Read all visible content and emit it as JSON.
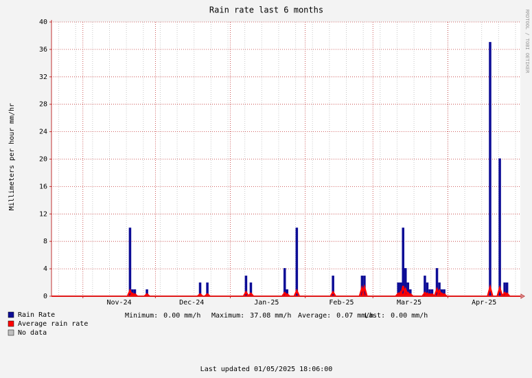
{
  "chart_data": {
    "type": "bar",
    "title": "Rain rate last 6 months",
    "y_label": "Millimeters per hour",
    "y_unit": "mm/hr",
    "side_text": "RRDTOOL / TOBI OETIKER",
    "xlim": [
      "2024-10-19",
      "2025-05-01"
    ],
    "xticks": [
      {
        "value": "2024-11-01",
        "label": "Nov-24"
      },
      {
        "value": "2024-12-01",
        "label": "Dec-24"
      },
      {
        "value": "2025-01-01",
        "label": "Jan-25"
      },
      {
        "value": "2025-02-01",
        "label": "Feb-25"
      },
      {
        "value": "2025-03-01",
        "label": "Mar-25"
      },
      {
        "value": "2025-04-01",
        "label": "Apr-25"
      }
    ],
    "ylim": [
      0,
      40
    ],
    "yticks": [
      0,
      4,
      8,
      12,
      16,
      20,
      24,
      28,
      32,
      36,
      40
    ],
    "grid": true,
    "x": [
      "2024-11-20",
      "2024-11-21",
      "2024-11-22",
      "2024-11-27",
      "2024-12-19",
      "2024-12-22",
      "2025-01-07",
      "2025-01-09",
      "2025-01-23",
      "2025-01-24",
      "2025-01-28",
      "2025-02-12",
      "2025-02-24",
      "2025-02-25",
      "2025-03-11",
      "2025-03-12",
      "2025-03-13",
      "2025-03-14",
      "2025-03-15",
      "2025-03-16",
      "2025-03-22",
      "2025-03-23",
      "2025-03-24",
      "2025-03-25",
      "2025-03-27",
      "2025-03-28",
      "2025-03-29",
      "2025-03-30",
      "2025-04-18",
      "2025-04-22",
      "2025-04-24",
      "2025-04-25"
    ],
    "series": [
      {
        "name": "Rain Rate",
        "color": "#0c0c96",
        "values": [
          10,
          1,
          1,
          1,
          2,
          2,
          3,
          2,
          4.1,
          1,
          10,
          3,
          3,
          3,
          2,
          2,
          10,
          4.1,
          2,
          1,
          3,
          2,
          1,
          1,
          4.1,
          2,
          1,
          1,
          37.08,
          20.1,
          2,
          2
        ]
      },
      {
        "name": "Average rain rate",
        "color": "#ff0000",
        "values": [
          0.8,
          0.4,
          0.3,
          0.3,
          0.3,
          0.3,
          0.6,
          0.4,
          0.5,
          0.3,
          0.8,
          0.6,
          1.2,
          1.3,
          0.4,
          0.6,
          1.5,
          1,
          0.5,
          0.3,
          0.5,
          0.4,
          0.3,
          0.3,
          1,
          0.8,
          0.4,
          0.3,
          1.3,
          1.2,
          0.5,
          0.4
        ]
      }
    ],
    "no_data_legend": {
      "name": "No data",
      "color": "#c0c0c0"
    },
    "stats": [
      {
        "label": "Minimum:",
        "value": "0.00 mm/h"
      },
      {
        "label": "Maximum:",
        "value": "37.08 mm/h"
      },
      {
        "label": "Average:",
        "value": "0.07 mm/h"
      },
      {
        "label": "Last:",
        "value": "0.00 mm/h"
      }
    ],
    "footer": "Last updated 01/05/2025 18:06:00"
  }
}
